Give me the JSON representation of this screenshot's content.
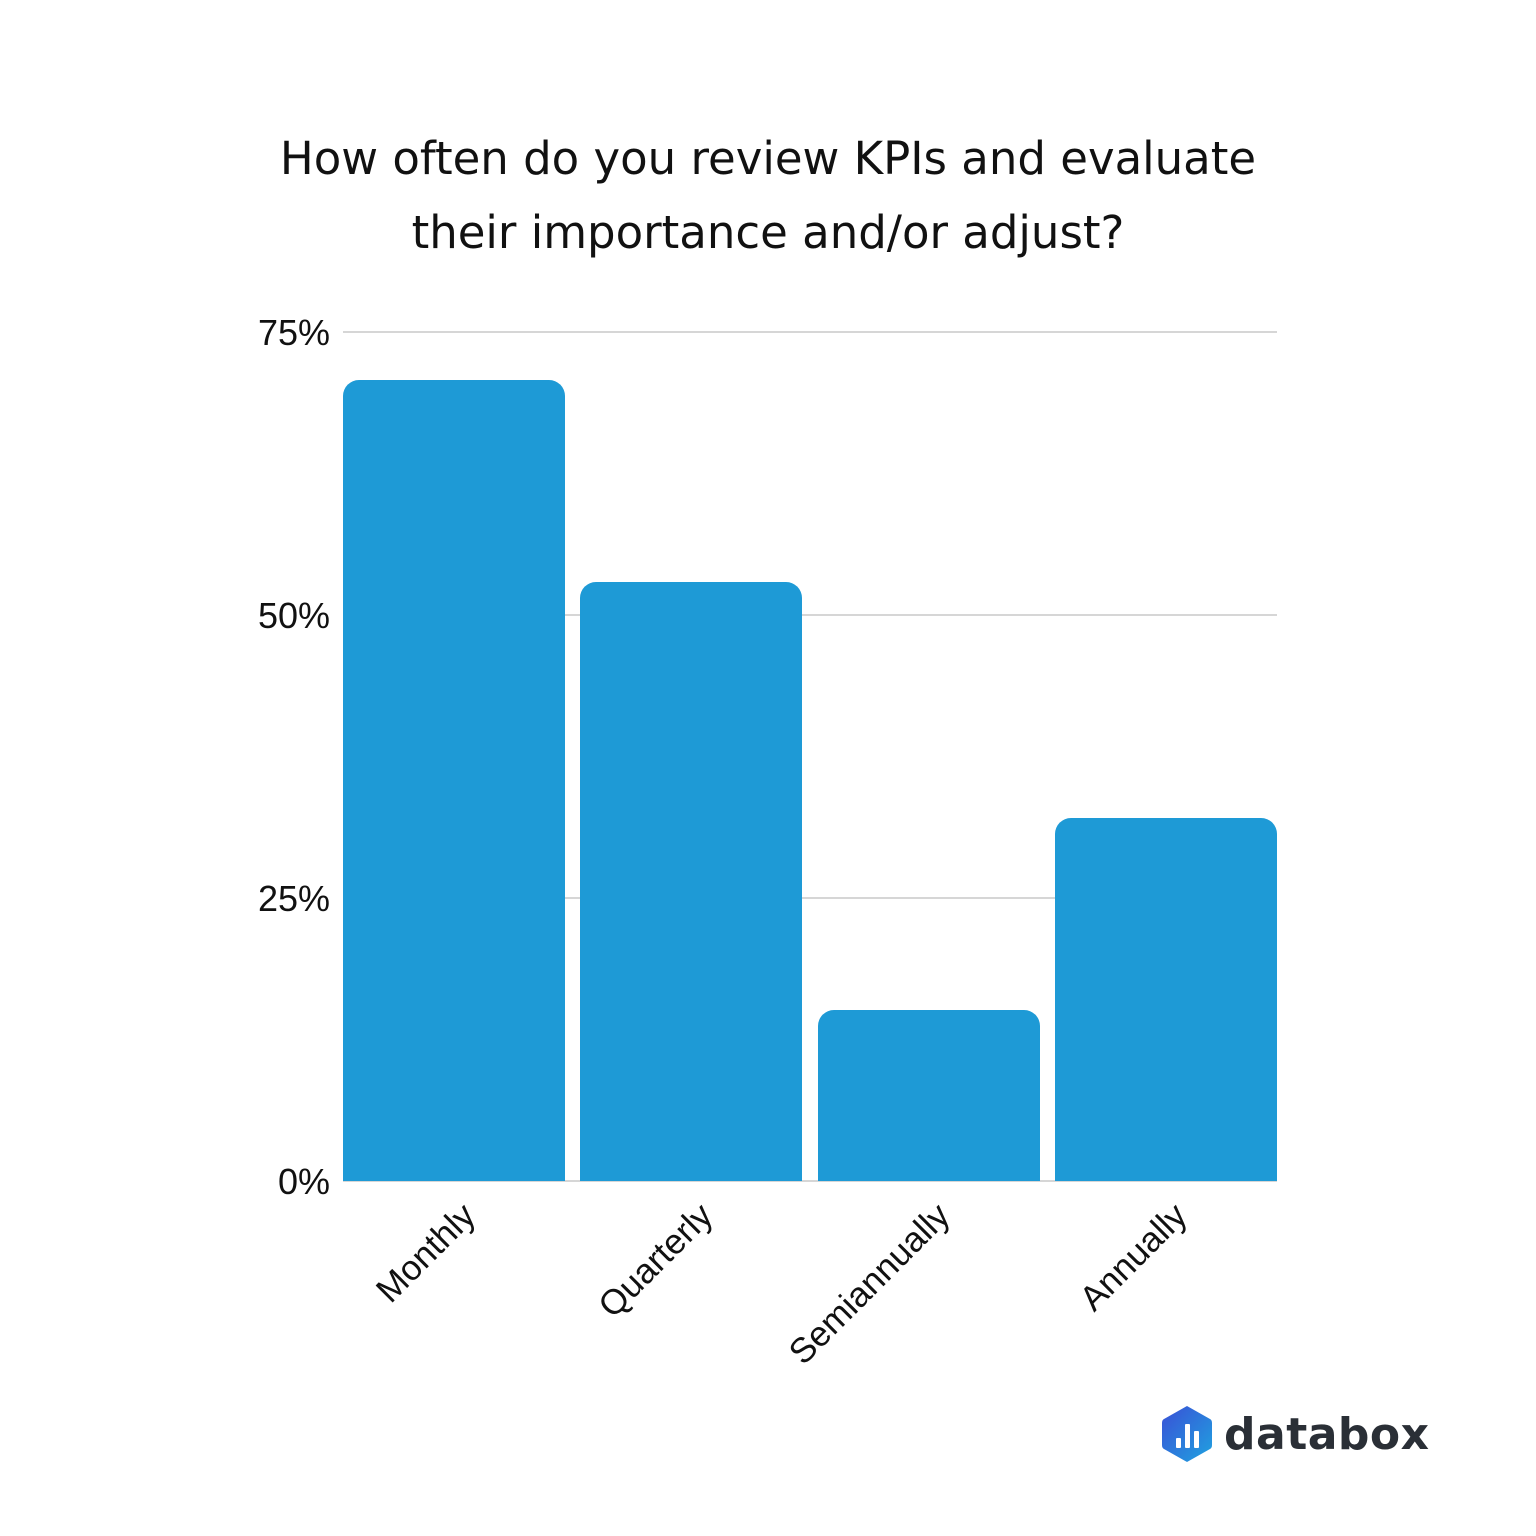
{
  "title_line1": "How often do you review KPIs and evaluate",
  "title_line2": "their importance and/or adjust?",
  "brand": {
    "name": "databox",
    "icon": "databox-logo-icon",
    "color": "#2a2f36",
    "icon_gradient": [
      "#3a4fd6",
      "#1fa3e0"
    ]
  },
  "colors": {
    "bar": "#1e9ad6",
    "grid": "#d6d6d6"
  },
  "y_ticks": [
    "75%",
    "50%",
    "25%",
    "0%"
  ],
  "chart_data": {
    "type": "bar",
    "title": "How often do you review KPIs and evaluate their importance and/or adjust?",
    "categories": [
      "Monthly",
      "Quarterly",
      "Semiannually",
      "Annually"
    ],
    "values": [
      70.8,
      52.9,
      15.1,
      32.1
    ],
    "xlabel": "",
    "ylabel": "",
    "ylim": [
      0,
      75
    ],
    "y_tick_labels": [
      "0%",
      "25%",
      "50%",
      "75%"
    ],
    "grid": true,
    "legend": "none",
    "x_label_rotation": -45,
    "unit": "%"
  }
}
